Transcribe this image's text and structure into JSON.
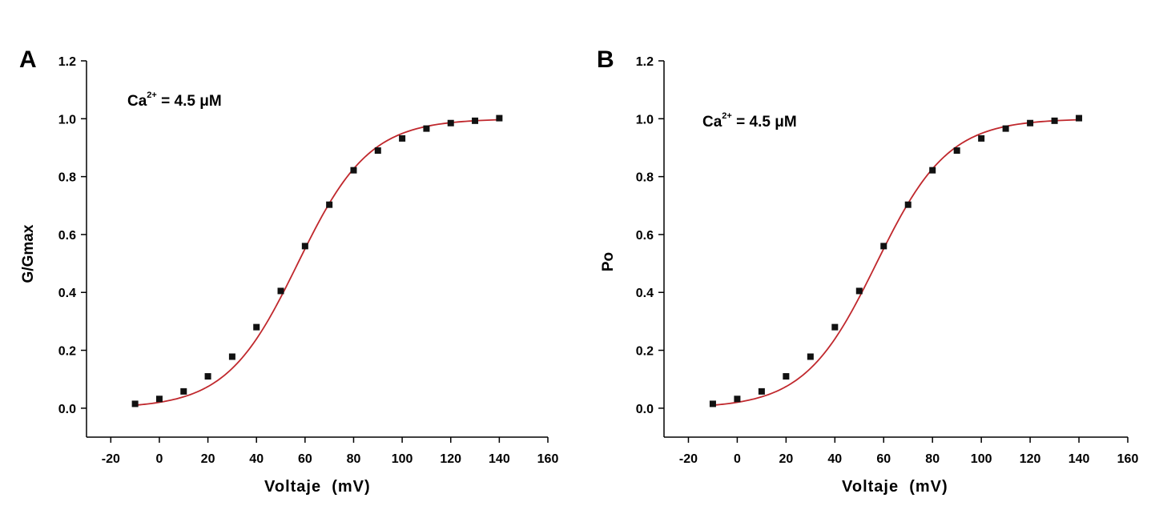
{
  "colors": {
    "fit_curve": "#c0282d",
    "points": "#111111",
    "axes": "#000000"
  },
  "chart_data": [
    {
      "type": "scatter",
      "panel_label": "A",
      "ylabel": "G/Gmax",
      "xlabel": "Voltaje  (mV)",
      "annotation": {
        "base": "Ca",
        "sup": "2+",
        "rest": " = 4.5 μM"
      },
      "xlim": [
        -30,
        160
      ],
      "ylim": [
        -0.1,
        1.2
      ],
      "xticks": [
        -20,
        0,
        20,
        40,
        60,
        80,
        100,
        120,
        140,
        160
      ],
      "yticks": [
        0.0,
        0.2,
        0.4,
        0.6,
        0.8,
        1.0,
        1.2
      ],
      "xtick_labels": [
        "-20",
        "0",
        "20",
        "40",
        "60",
        "80",
        "100",
        "120",
        "140",
        "160"
      ],
      "ytick_labels": [
        "0.0",
        "0.2",
        "0.4",
        "0.6",
        "0.8",
        "1.0",
        "1.2"
      ],
      "x": [
        -10,
        0,
        10,
        20,
        30,
        40,
        50,
        60,
        70,
        80,
        90,
        100,
        110,
        120,
        130,
        140
      ],
      "y": [
        0.015,
        0.032,
        0.058,
        0.11,
        0.178,
        0.28,
        0.405,
        0.56,
        0.703,
        0.822,
        0.89,
        0.932,
        0.966,
        0.985,
        0.993,
        1.002
      ],
      "fit": {
        "type": "boltzmann",
        "bottom": 0.0,
        "top": 1.0,
        "v_half": 57,
        "slope": 14.7
      }
    },
    {
      "type": "scatter",
      "panel_label": "B",
      "ylabel": "Po",
      "xlabel": "Voltaje  (mV)",
      "annotation": {
        "base": "Ca",
        "sup": "2+",
        "rest": " = 4.5 μM"
      },
      "xlim": [
        -30,
        160
      ],
      "ylim": [
        -0.1,
        1.2
      ],
      "xticks": [
        -20,
        0,
        20,
        40,
        60,
        80,
        100,
        120,
        140,
        160
      ],
      "yticks": [
        0.0,
        0.2,
        0.4,
        0.6,
        0.8,
        1.0,
        1.2
      ],
      "xtick_labels": [
        "-20",
        "0",
        "20",
        "40",
        "60",
        "80",
        "100",
        "120",
        "140",
        "160"
      ],
      "ytick_labels": [
        "0.0",
        "0.2",
        "0.4",
        "0.6",
        "0.8",
        "1.0",
        "1.2"
      ],
      "x": [
        -10,
        0,
        10,
        20,
        30,
        40,
        50,
        60,
        70,
        80,
        90,
        100,
        110,
        120,
        130,
        140
      ],
      "y": [
        0.015,
        0.032,
        0.058,
        0.11,
        0.178,
        0.28,
        0.405,
        0.56,
        0.703,
        0.822,
        0.89,
        0.932,
        0.966,
        0.985,
        0.993,
        1.002
      ],
      "fit": {
        "type": "boltzmann",
        "bottom": 0.0,
        "top": 1.0,
        "v_half": 57,
        "slope": 14.7
      }
    }
  ]
}
